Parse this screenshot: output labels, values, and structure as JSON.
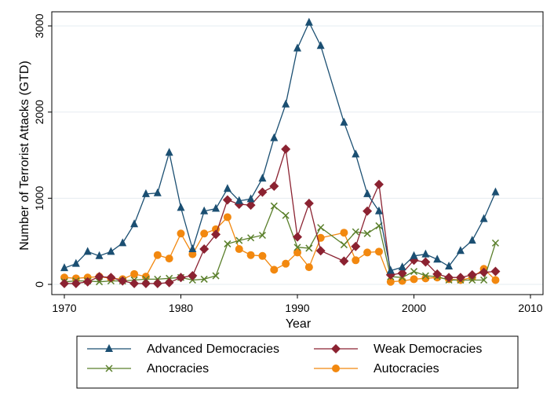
{
  "chart_data": {
    "type": "line",
    "xlabel": "Year",
    "ylabel": "Number of Terrorist Attacks (GTD)",
    "xlim": [
      1970,
      2010
    ],
    "ylim": [
      0,
      3100
    ],
    "xticks": [
      1970,
      1980,
      1990,
      2000,
      2010
    ],
    "yticks": [
      0,
      1000,
      2000,
      3000
    ],
    "grid": true,
    "legend_position": "bottom",
    "x": [
      1970,
      1971,
      1972,
      1973,
      1974,
      1975,
      1976,
      1977,
      1978,
      1979,
      1980,
      1981,
      1982,
      1983,
      1984,
      1985,
      1986,
      1987,
      1988,
      1989,
      1990,
      1991,
      1992,
      1994,
      1995,
      1996,
      1997,
      1998,
      1999,
      2000,
      2001,
      2002,
      2003,
      2004,
      2005,
      2006,
      2007
    ],
    "series": [
      {
        "name": "Advanced Democracies",
        "color": "#1b4f72",
        "marker": "triangle",
        "values": [
          190,
          240,
          380,
          330,
          380,
          480,
          700,
          1050,
          1060,
          1530,
          890,
          410,
          850,
          880,
          1110,
          970,
          990,
          1230,
          1700,
          2090,
          2740,
          3040,
          2770,
          1880,
          1510,
          1050,
          850,
          160,
          200,
          330,
          350,
          290,
          210,
          390,
          510,
          760,
          1070
        ]
      },
      {
        "name": "Weak Democracies",
        "color": "#8b2231",
        "marker": "diamond",
        "values": [
          10,
          10,
          30,
          90,
          80,
          40,
          10,
          10,
          10,
          20,
          80,
          100,
          410,
          580,
          980,
          930,
          920,
          1070,
          1140,
          1570,
          550,
          940,
          390,
          270,
          440,
          850,
          1160,
          110,
          130,
          280,
          260,
          120,
          80,
          80,
          110,
          140,
          150
        ]
      },
      {
        "name": "Anocracies",
        "color": "#5a7f2b",
        "marker": "x",
        "values": [
          30,
          40,
          40,
          30,
          40,
          40,
          50,
          60,
          60,
          70,
          80,
          50,
          60,
          100,
          470,
          510,
          540,
          570,
          910,
          800,
          430,
          420,
          660,
          460,
          610,
          590,
          680,
          90,
          80,
          150,
          100,
          90,
          50,
          50,
          50,
          50,
          480
        ]
      },
      {
        "name": "Autocracies",
        "color": "#f2880f",
        "marker": "circle",
        "values": [
          80,
          70,
          80,
          90,
          70,
          60,
          120,
          90,
          340,
          300,
          590,
          350,
          590,
          640,
          780,
          410,
          340,
          330,
          170,
          240,
          370,
          200,
          540,
          600,
          280,
          370,
          380,
          30,
          40,
          60,
          70,
          80,
          60,
          50,
          80,
          180,
          50
        ]
      }
    ]
  }
}
